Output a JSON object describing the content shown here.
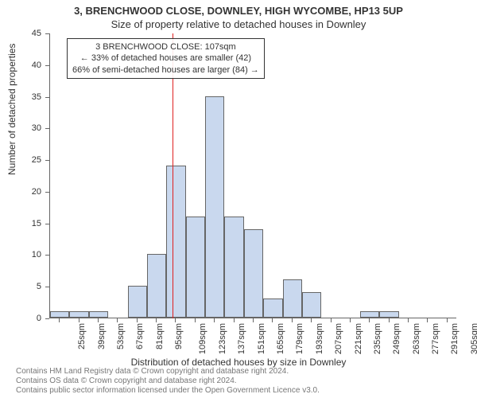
{
  "title_main": "3, BRENCHWOOD CLOSE, DOWNLEY, HIGH WYCOMBE, HP13 5UP",
  "title_sub": "Size of property relative to detached houses in Downley",
  "ylabel": "Number of detached properties",
  "xlabel": "Distribution of detached houses by size in Downley",
  "footer_line1": "Contains HM Land Registry data © Crown copyright and database right 2024.",
  "footer_line2": "Contains OS data © Crown copyright and database right 2024.",
  "footer_line3": "Contains public sector information licensed under the Open Government Licence v3.0.",
  "chart": {
    "type": "histogram",
    "background_color": "#ffffff",
    "bar_fill": "#c9d8ee",
    "bar_border": "#666666",
    "axis_color": "#666666",
    "vline_color": "#e02020",
    "vline_x": 107,
    "ylim": [
      0,
      45
    ],
    "ytick_step": 5,
    "yticks": [
      0,
      5,
      10,
      15,
      20,
      25,
      30,
      35,
      40,
      45
    ],
    "xlim": [
      18,
      312
    ],
    "xticks": [
      25,
      39,
      53,
      67,
      81,
      95,
      109,
      123,
      137,
      151,
      165,
      179,
      193,
      207,
      221,
      235,
      249,
      263,
      277,
      291,
      305
    ],
    "xtick_suffix": "sqm",
    "bin_width": 14,
    "bins": [
      {
        "start": 18,
        "count": 1
      },
      {
        "start": 32,
        "count": 1
      },
      {
        "start": 46,
        "count": 1
      },
      {
        "start": 60,
        "count": 0
      },
      {
        "start": 74,
        "count": 5
      },
      {
        "start": 88,
        "count": 10
      },
      {
        "start": 102,
        "count": 24
      },
      {
        "start": 116,
        "count": 16
      },
      {
        "start": 130,
        "count": 35
      },
      {
        "start": 144,
        "count": 16
      },
      {
        "start": 158,
        "count": 14
      },
      {
        "start": 172,
        "count": 3
      },
      {
        "start": 186,
        "count": 6
      },
      {
        "start": 200,
        "count": 4
      },
      {
        "start": 214,
        "count": 0
      },
      {
        "start": 228,
        "count": 0
      },
      {
        "start": 242,
        "count": 1
      },
      {
        "start": 256,
        "count": 1
      },
      {
        "start": 270,
        "count": 0
      },
      {
        "start": 284,
        "count": 0
      },
      {
        "start": 298,
        "count": 0
      }
    ],
    "annotation": {
      "line1": "3 BRENCHWOOD CLOSE: 107sqm",
      "line2": "← 33% of detached houses are smaller (42)",
      "line3": "66% of semi-detached houses are larger (84) →",
      "border_color": "#333333",
      "bg_color": "rgba(255,255,255,0.9)",
      "fontsize": 11
    }
  }
}
